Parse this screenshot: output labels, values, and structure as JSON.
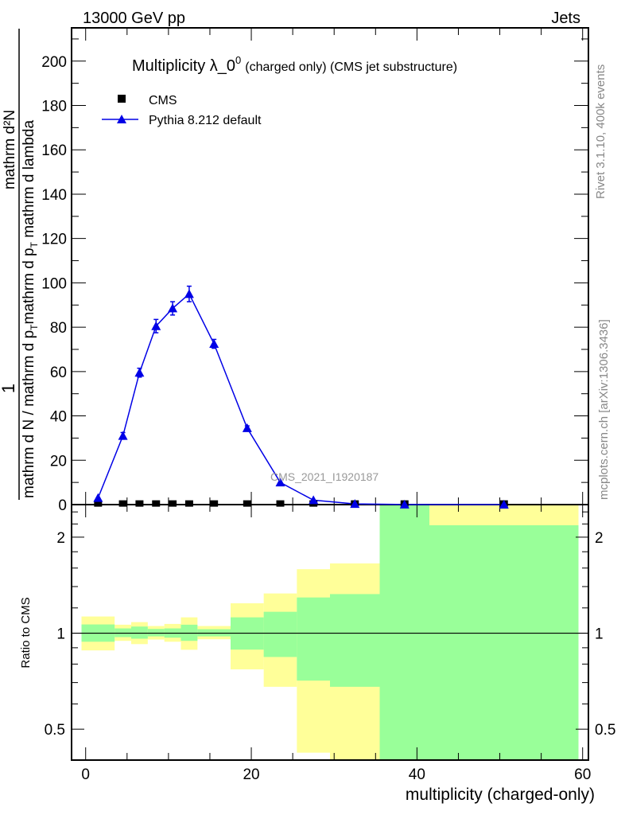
{
  "header": {
    "left": "13000 GeV pp",
    "right": "Jets"
  },
  "side_labels": {
    "rivet": "Rivet 3.1.10,  400k events",
    "mcplots": "mcplots.cern.ch [arXiv:1306.3436]"
  },
  "watermark": "CMS_2021_I1920187",
  "colors": {
    "mc": "#0000e6",
    "data": "#000000",
    "band_yellow": "#ffff99",
    "band_green": "#99ff99",
    "watermark": "#999999"
  },
  "chart_data": [
    {
      "type": "line",
      "title_main": "Multiplicity λ_0",
      "title_sup": "0",
      "title_rest": "(charged only) (CMS jet substructure)",
      "ylabel": {
        "frac1_num": "1",
        "frac1_den": "mathrm d N / mathrm d p",
        "frac1_den_sub": "T",
        "frac2_num": "mathrm d²N",
        "frac2_den": "mathrm d p",
        "frac2_den_sub": "T",
        "frac2_den_rest": " mathrm d lambda"
      },
      "xlim": [
        -1.7,
        60.7
      ],
      "ylim": [
        0,
        215
      ],
      "yticks": [
        0,
        20,
        40,
        60,
        80,
        100,
        120,
        140,
        160,
        180,
        200
      ],
      "legend": {
        "position": "top-left",
        "entries": [
          "CMS",
          "Pythia 8.212 default"
        ]
      },
      "bin_edges": [
        -0.5,
        3.5,
        5.5,
        7.5,
        9.5,
        11.5,
        13.5,
        17.5,
        21.5,
        25.5,
        29.5,
        35.5,
        41.5,
        59.5
      ],
      "x": [
        1.5,
        4.5,
        6.5,
        8.5,
        10.5,
        12.5,
        15.5,
        19.5,
        23.5,
        27.5,
        32.5,
        38.5,
        50.5
      ],
      "series": [
        {
          "name": "CMS",
          "values": [
            0.5,
            0.5,
            0.5,
            0.5,
            0.5,
            0.5,
            0.5,
            0.5,
            0.5,
            0.5,
            0.5,
            0.5,
            0.5
          ]
        },
        {
          "name": "Pythia 8.212 default",
          "values": [
            3,
            31,
            59.5,
            80.5,
            88.5,
            95,
            72.5,
            34.5,
            10,
            2,
            0.3,
            0.05,
            0.02
          ],
          "errors": [
            0.5,
            1.5,
            2,
            3,
            3,
            3.5,
            2,
            1,
            0.5,
            0.3,
            0.1,
            0,
            0
          ]
        }
      ]
    },
    {
      "type": "area",
      "ylabel": "Ratio to CMS",
      "xlabel": "multiplicity (charged-only)",
      "yscale": "log",
      "ylim": [
        0.4,
        2.53
      ],
      "yticks": [
        0.5,
        1,
        2
      ],
      "yticklabels": [
        "0.5",
        "1",
        "2"
      ],
      "xticks": [
        0,
        20,
        40,
        60
      ],
      "xticklabels": [
        "0",
        "20",
        "40",
        "60"
      ],
      "reference_line": 1,
      "yellow_band": {
        "upper": [
          1.128,
          1.063,
          1.083,
          1.053,
          1.069,
          1.121,
          1.053,
          1.241,
          1.332,
          1.587,
          1.655,
          3,
          3
        ],
        "lower": [
          0.883,
          0.946,
          0.924,
          0.955,
          0.94,
          0.887,
          0.957,
          0.77,
          0.679,
          0.422,
          0.3,
          0.3,
          0.3
        ]
      },
      "green_band": {
        "upper": [
          1.065,
          1.035,
          1.049,
          1.031,
          1.035,
          1.063,
          1.029,
          1.121,
          1.167,
          1.294,
          1.326,
          3,
          2.18
        ],
        "lower": [
          0.94,
          0.972,
          0.961,
          0.977,
          0.968,
          0.946,
          0.977,
          0.888,
          0.842,
          0.71,
          0.679,
          0.3,
          0.3
        ]
      }
    }
  ]
}
